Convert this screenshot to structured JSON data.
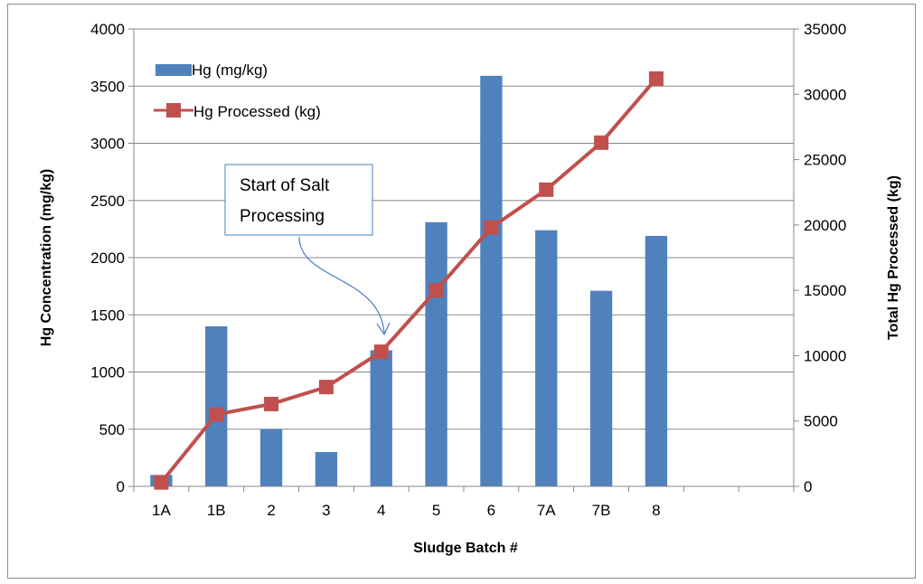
{
  "chart_data": {
    "type": "bar",
    "categories": [
      "1A",
      "1B",
      "2",
      "3",
      "4",
      "5",
      "6",
      "7A",
      "7B",
      "8",
      "",
      ""
    ],
    "series": [
      {
        "name": "Hg (mg/kg)",
        "type": "bar",
        "axis": "left",
        "color": "#4f81bd",
        "values": [
          100,
          1400,
          500,
          300,
          1190,
          2310,
          3590,
          2240,
          1710,
          2190,
          null,
          null
        ]
      },
      {
        "name": "Hg Processed (kg)",
        "type": "line",
        "axis": "right",
        "color": "#c0504d",
        "values": [
          300,
          5500,
          6300,
          7600,
          10300,
          15000,
          19800,
          22700,
          26300,
          31200,
          null,
          null
        ]
      }
    ],
    "title": "",
    "xlabel": "Sludge Batch #",
    "ylabel": "Hg Concentration (mg/kg)",
    "y2label": "Total Hg Processed (kg)",
    "ylim": [
      0,
      4000
    ],
    "y2lim": [
      0,
      35000
    ],
    "yticks": [
      0,
      500,
      1000,
      1500,
      2000,
      2500,
      3000,
      3500,
      4000
    ],
    "y2ticks": [
      0,
      5000,
      10000,
      15000,
      20000,
      25000,
      30000,
      35000
    ],
    "grid": true,
    "legend": "top-left",
    "annotation": {
      "lines": [
        "Start of Salt",
        "Processing"
      ],
      "target_category": "4"
    }
  }
}
